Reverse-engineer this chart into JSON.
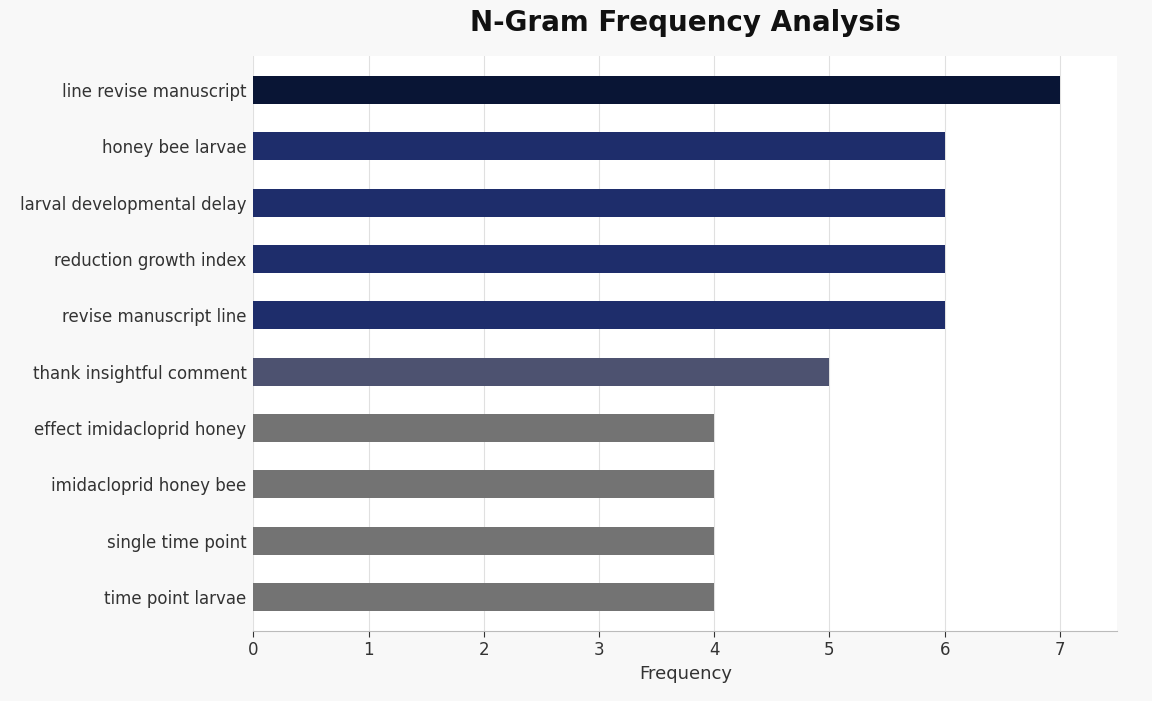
{
  "title": "N-Gram Frequency Analysis",
  "xlabel": "Frequency",
  "categories": [
    "time point larvae",
    "single time point",
    "imidacloprid honey bee",
    "effect imidacloprid honey",
    "thank insightful comment",
    "revise manuscript line",
    "reduction growth index",
    "larval developmental delay",
    "honey bee larvae",
    "line revise manuscript"
  ],
  "values": [
    4,
    4,
    4,
    4,
    5,
    6,
    6,
    6,
    6,
    7
  ],
  "bar_colors": [
    "#737373",
    "#737373",
    "#737373",
    "#737373",
    "#4d5270",
    "#1e2d6b",
    "#1e2d6b",
    "#1e2d6b",
    "#1e2d6b",
    "#091535"
  ],
  "xlim": [
    0,
    7.5
  ],
  "xticks": [
    0,
    1,
    2,
    3,
    4,
    5,
    6,
    7
  ],
  "background_color": "#f8f8f8",
  "plot_background": "#ffffff",
  "bar_height": 0.5,
  "title_fontsize": 20,
  "label_fontsize": 12,
  "tick_fontsize": 12,
  "xlabel_fontsize": 13
}
